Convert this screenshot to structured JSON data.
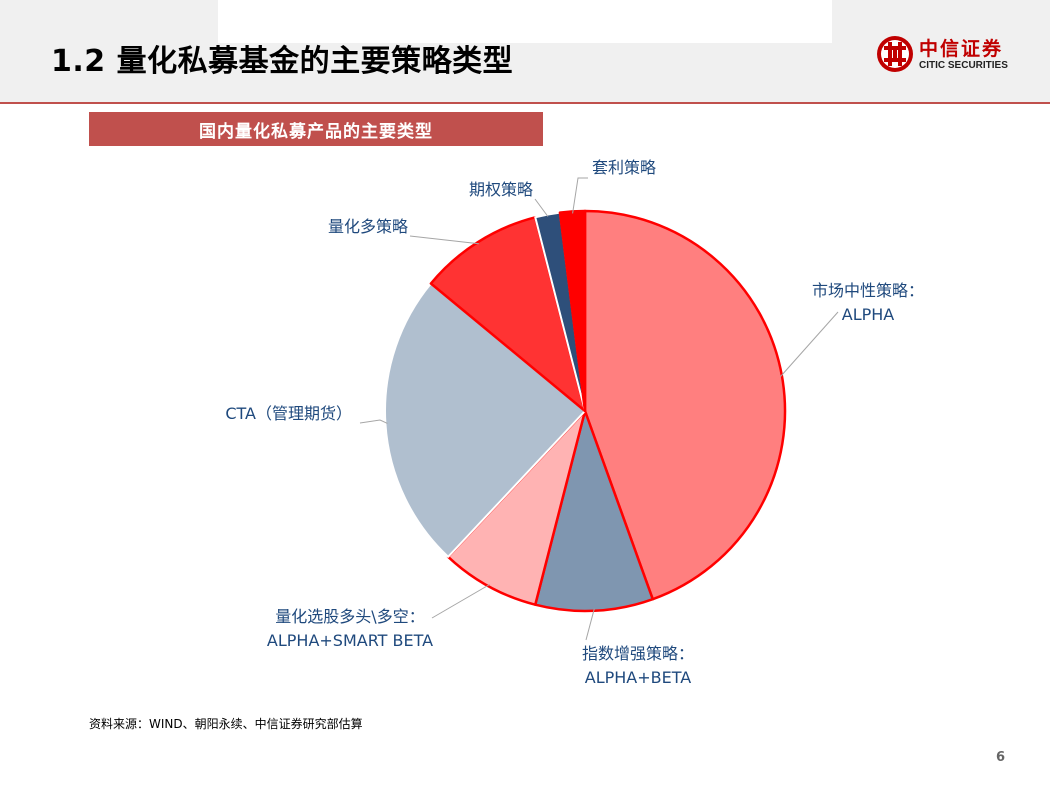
{
  "header": {
    "title": "1.2 量化私募基金的主要策略类型",
    "logo_cn": "中信证券",
    "logo_en": "CITIC SECURITIES"
  },
  "chart_data": {
    "type": "pie",
    "title": "国内量化私募产品的主要类型",
    "unit": "%",
    "slices": [
      {
        "label": "市场中性策略：ALPHA",
        "label_lines": [
          "市场中性策略：",
          "ALPHA"
        ],
        "value": 44.5,
        "color": "#ff7f7f"
      },
      {
        "label": "指数增强策略：ALPHA+BETA",
        "label_lines": [
          "指数增强策略：",
          "ALPHA+BETA"
        ],
        "value": 9.5,
        "color": "#7f96b0"
      },
      {
        "label": "量化选股多头\\多空：ALPHA+SMART BETA",
        "label_lines": [
          "量化选股多头\\多空：",
          "ALPHA+SMART  BETA"
        ],
        "value": 8.0,
        "color": "#ffb3b3"
      },
      {
        "label": "CTA（管理期货）",
        "label_lines": [
          "CTA（管理期货）"
        ],
        "value": 24.0,
        "color": "#b0bfcf"
      },
      {
        "label": "量化多策略",
        "label_lines": [
          "量化多策略"
        ],
        "value": 10.0,
        "color": "#ff3333"
      },
      {
        "label": "期权策略",
        "label_lines": [
          "期权策略"
        ],
        "value": 2.0,
        "color": "#2e4f7a"
      },
      {
        "label": "套利策略",
        "label_lines": [
          "套利策略"
        ],
        "value": 2.0,
        "color": "#ff0000"
      }
    ],
    "label_color": "#1f497d",
    "highlight_stroke": "#ff0000"
  },
  "footer": {
    "source": "资料来源：WIND、朝阳永续、中信证券研究部估算",
    "page_number": "6"
  }
}
